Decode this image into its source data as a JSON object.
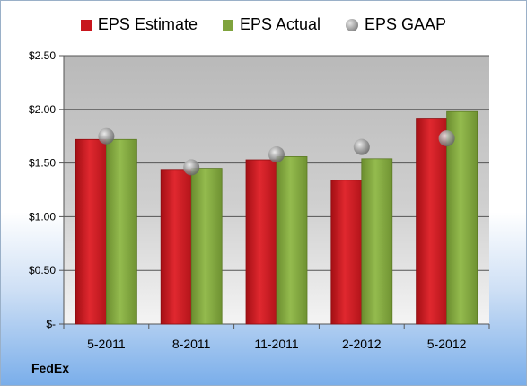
{
  "chart_data": {
    "type": "bar",
    "categories": [
      "5-2011",
      "8-2011",
      "11-2011",
      "2-2012",
      "5-2012"
    ],
    "series": [
      {
        "name": "EPS Estimate",
        "values": [
          1.72,
          1.44,
          1.53,
          1.34,
          1.91
        ],
        "color": "#c8161d",
        "kind": "bar"
      },
      {
        "name": "EPS Actual",
        "values": [
          1.72,
          1.45,
          1.56,
          1.54,
          1.98
        ],
        "color": "#7fa33d",
        "kind": "bar"
      },
      {
        "name": "EPS GAAP",
        "values": [
          1.75,
          1.46,
          1.58,
          1.65,
          1.73
        ],
        "color": "#9a9a9a",
        "kind": "marker"
      }
    ],
    "ylim": [
      0,
      2.5
    ],
    "yticks": [
      0,
      0.5,
      1.0,
      1.5,
      2.0,
      2.5
    ],
    "ytick_labels": [
      "$-",
      "$0.50",
      "$1.00",
      "$1.50",
      "$2.00",
      "$2.50"
    ],
    "grid": true,
    "legend_position": "top"
  },
  "legend": {
    "estimate": "EPS Estimate",
    "actual": "EPS Actual",
    "gaap": "EPS GAAP"
  },
  "footer": {
    "company": "FedEx"
  }
}
